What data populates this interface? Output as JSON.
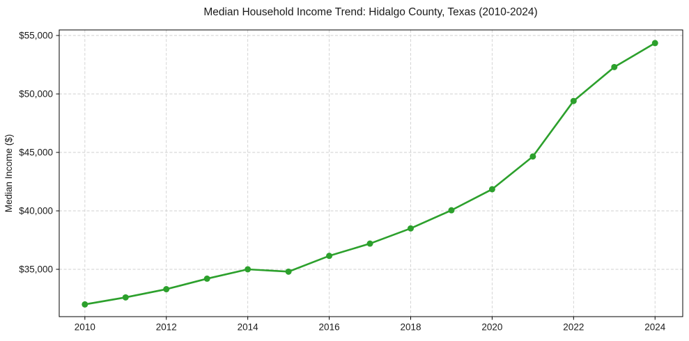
{
  "chart_data": {
    "type": "line",
    "title": "Median Household Income Trend: Hidalgo County, Texas (2010-2024)",
    "xlabel": "",
    "ylabel": "Median Income ($)",
    "x": [
      2010,
      2011,
      2012,
      2013,
      2014,
      2015,
      2016,
      2017,
      2018,
      2019,
      2020,
      2021,
      2022,
      2023,
      2024
    ],
    "series": [
      {
        "name": "Median Household Income",
        "color": "#2ca02c",
        "marker": "circle",
        "values": [
          32000,
          32600,
          33300,
          34200,
          35000,
          34800,
          36150,
          37200,
          38500,
          40050,
          41850,
          44650,
          49400,
          52300,
          54350
        ]
      }
    ],
    "x_ticks": [
      2010,
      2012,
      2014,
      2016,
      2018,
      2020,
      2022,
      2024
    ],
    "x_tick_labels": [
      "2010",
      "2012",
      "2014",
      "2016",
      "2018",
      "2020",
      "2022",
      "2024"
    ],
    "y_ticks": [
      35000,
      40000,
      45000,
      50000,
      55000
    ],
    "y_tick_labels": [
      "$35,000",
      "$40,000",
      "$45,000",
      "$50,000",
      "$55,000"
    ],
    "xlim": [
      2009.37,
      2024.68
    ],
    "ylim": [
      30952,
      55476
    ],
    "grid": true,
    "grid_style": "dashed",
    "grid_color": "#cfcfcf",
    "axis_color": "#000000",
    "text_color": "#1a1a1a",
    "background_color": "#ffffff",
    "legend_position": "none"
  }
}
